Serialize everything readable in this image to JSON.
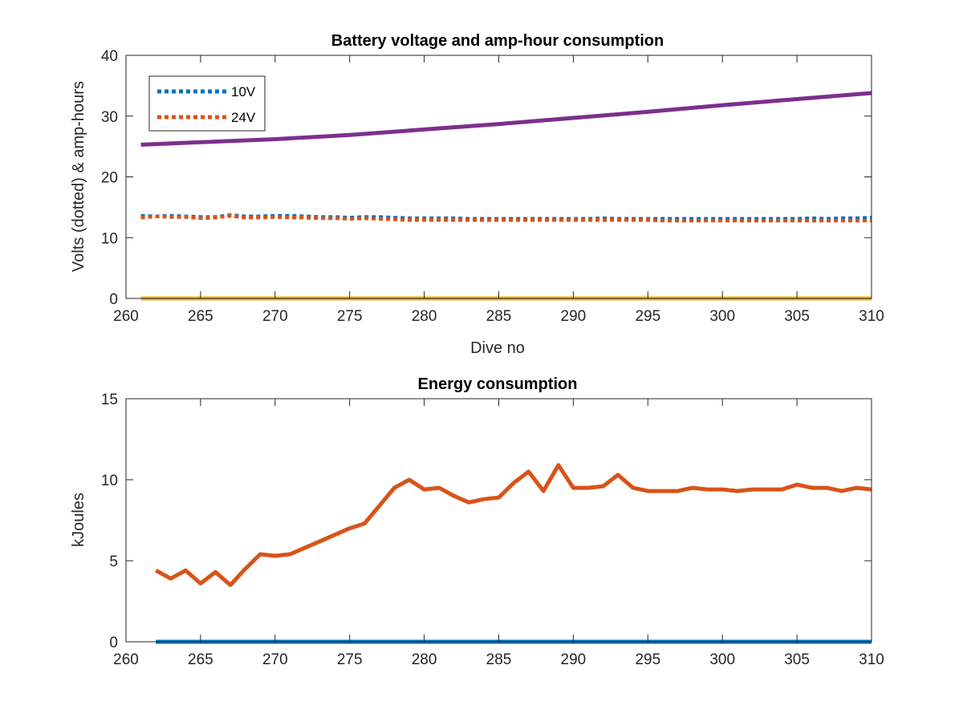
{
  "colors": {
    "axis": "#262626",
    "blue": "#0072BD",
    "orange": "#D95319",
    "yellow": "#EDB120",
    "purple": "#7E2F8E"
  },
  "chart_data": [
    {
      "type": "line",
      "title": "Battery voltage and amp-hour consumption",
      "xlabel": "Dive no",
      "ylabel": "Volts (dotted) & amp-hours",
      "xlim": [
        260,
        310
      ],
      "ylim": [
        0,
        40
      ],
      "xticks": [
        260,
        265,
        270,
        275,
        280,
        285,
        290,
        295,
        300,
        305,
        310
      ],
      "yticks": [
        0,
        10,
        20,
        30,
        40
      ],
      "xtick_labels": [
        "260",
        "265",
        "270",
        "275",
        "280",
        "285",
        "290",
        "295",
        "300",
        "305",
        "310"
      ],
      "ytick_labels": [
        "0",
        "10",
        "20",
        "30",
        "40"
      ],
      "legend_position": "top-left",
      "series": [
        {
          "name": "10V",
          "style": "dotted",
          "color": "#0072BD",
          "x": [
            261,
            262,
            263,
            264,
            265,
            266,
            267,
            268,
            269,
            270,
            271,
            272,
            273,
            274,
            275,
            276,
            277,
            278,
            279,
            280,
            281,
            282,
            283,
            284,
            285,
            286,
            287,
            288,
            289,
            290,
            291,
            292,
            293,
            294,
            295,
            296,
            297,
            298,
            299,
            300,
            301,
            302,
            303,
            304,
            305,
            306,
            307,
            308,
            309,
            310
          ],
          "y": [
            13.6,
            13.5,
            13.6,
            13.5,
            13.4,
            13.4,
            13.7,
            13.5,
            13.5,
            13.6,
            13.6,
            13.5,
            13.4,
            13.4,
            13.3,
            13.4,
            13.4,
            13.3,
            13.2,
            13.2,
            13.2,
            13.2,
            13.1,
            13.1,
            13.1,
            13.1,
            13.1,
            13.1,
            13.1,
            13.1,
            13.1,
            13.2,
            13.1,
            13.1,
            13.1,
            13.1,
            13.1,
            13.1,
            13.1,
            13.1,
            13.1,
            13.1,
            13.1,
            13.1,
            13.1,
            13.2,
            13.1,
            13.2,
            13.2,
            13.3
          ]
        },
        {
          "name": "24V",
          "style": "dotted",
          "color": "#D95319",
          "x": [
            261,
            262,
            263,
            264,
            265,
            266,
            267,
            268,
            269,
            270,
            271,
            272,
            273,
            274,
            275,
            276,
            277,
            278,
            279,
            280,
            281,
            282,
            283,
            284,
            285,
            286,
            287,
            288,
            289,
            290,
            291,
            292,
            293,
            294,
            295,
            296,
            297,
            298,
            299,
            300,
            301,
            302,
            303,
            304,
            305,
            306,
            307,
            308,
            309,
            310
          ],
          "y": [
            13.3,
            13.5,
            13.4,
            13.4,
            13.2,
            13.3,
            13.6,
            13.3,
            13.3,
            13.4,
            13.3,
            13.3,
            13.2,
            13.2,
            13.1,
            13.2,
            13.1,
            13.0,
            12.9,
            12.9,
            12.9,
            12.9,
            12.9,
            12.9,
            12.9,
            12.9,
            12.9,
            12.9,
            12.9,
            12.9,
            12.9,
            12.9,
            12.9,
            12.9,
            12.9,
            12.8,
            12.8,
            12.8,
            12.8,
            12.8,
            12.8,
            12.8,
            12.8,
            12.8,
            12.8,
            12.8,
            12.8,
            12.8,
            12.8,
            12.8
          ]
        },
        {
          "style": "solid",
          "color": "#EDB120",
          "x": [
            261,
            310
          ],
          "y": [
            0,
            0
          ]
        },
        {
          "style": "solid",
          "color": "#7E2F8E",
          "x": [
            261,
            265,
            270,
            275,
            280,
            285,
            290,
            295,
            300,
            305,
            310
          ],
          "y": [
            25.3,
            25.7,
            26.2,
            26.9,
            27.8,
            28.7,
            29.7,
            30.7,
            31.8,
            32.8,
            33.8
          ]
        }
      ]
    },
    {
      "type": "line",
      "title": "Energy consumption",
      "xlabel": "",
      "ylabel": "kJoules",
      "xlim": [
        260,
        310
      ],
      "ylim": [
        0,
        15
      ],
      "xticks": [
        260,
        265,
        270,
        275,
        280,
        285,
        290,
        295,
        300,
        305,
        310
      ],
      "yticks": [
        0,
        5,
        10,
        15
      ],
      "xtick_labels": [
        "260",
        "265",
        "270",
        "275",
        "280",
        "285",
        "290",
        "295",
        "300",
        "305",
        "310"
      ],
      "ytick_labels": [
        "0",
        "5",
        "10",
        "15"
      ],
      "series": [
        {
          "style": "solid",
          "color": "#0072BD",
          "x": [
            262,
            310
          ],
          "y": [
            0,
            0
          ]
        },
        {
          "style": "solid",
          "color": "#D95319",
          "x": [
            262,
            263,
            264,
            265,
            266,
            267,
            268,
            269,
            270,
            271,
            272,
            273,
            274,
            275,
            276,
            277,
            278,
            279,
            280,
            281,
            282,
            283,
            284,
            285,
            286,
            287,
            288,
            289,
            290,
            291,
            292,
            293,
            294,
            295,
            296,
            297,
            298,
            299,
            300,
            301,
            302,
            303,
            304,
            305,
            306,
            307,
            308,
            309,
            310
          ],
          "y": [
            4.4,
            3.9,
            4.4,
            3.6,
            4.3,
            3.5,
            4.5,
            5.4,
            5.3,
            5.4,
            5.8,
            6.2,
            6.6,
            7.0,
            7.3,
            8.4,
            9.5,
            10.0,
            9.4,
            9.5,
            9.0,
            8.6,
            8.8,
            8.9,
            9.8,
            10.5,
            9.3,
            10.9,
            9.5,
            9.5,
            9.6,
            10.3,
            9.5,
            9.3,
            9.3,
            9.3,
            9.5,
            9.4,
            9.4,
            9.3,
            9.4,
            9.4,
            9.4,
            9.7,
            9.5,
            9.5,
            9.3,
            9.5,
            9.4
          ]
        }
      ]
    }
  ]
}
